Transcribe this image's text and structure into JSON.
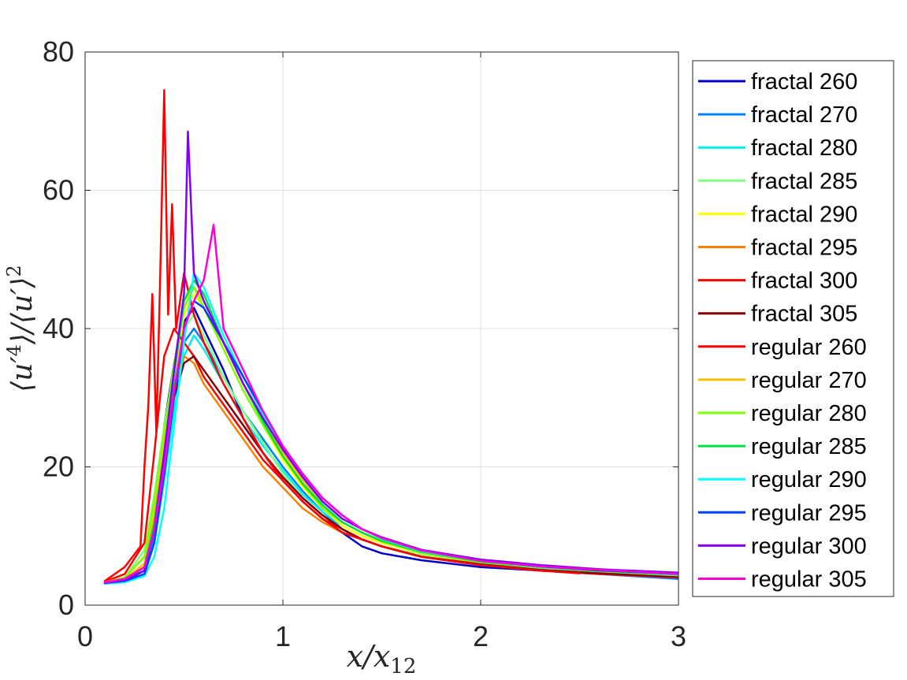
{
  "chart_data": {
    "type": "line",
    "xlabel": "x/x12",
    "ylabel": "⟨u′4⟩/⟨u′⟩2",
    "xlim": [
      0,
      3
    ],
    "ylim": [
      0,
      80
    ],
    "xticks": [
      "0",
      "1",
      "2",
      "3"
    ],
    "yticks": [
      "0",
      "20",
      "40",
      "60",
      "80"
    ],
    "grid": true,
    "legend_position": "outside-right",
    "series": [
      {
        "name": "fractal 260",
        "color": "#0000cc",
        "x": [
          0.1,
          0.2,
          0.3,
          0.35,
          0.4,
          0.45,
          0.5,
          0.55,
          0.6,
          0.7,
          0.8,
          0.9,
          1.0,
          1.1,
          1.2,
          1.3,
          1.4,
          1.5,
          1.7,
          2.0,
          2.3,
          2.6,
          3.0
        ],
        "y": [
          3.3,
          3.5,
          5.0,
          12.0,
          26.0,
          35.0,
          41.0,
          43.0,
          40.0,
          34.0,
          27.0,
          22.0,
          18.0,
          15.0,
          12.5,
          10.5,
          8.5,
          7.5,
          6.5,
          5.5,
          5.0,
          4.6,
          4.1
        ]
      },
      {
        "name": "fractal 270",
        "color": "#0080ff",
        "x": [
          0.1,
          0.2,
          0.3,
          0.35,
          0.4,
          0.45,
          0.5,
          0.55,
          0.6,
          0.7,
          0.8,
          0.9,
          1.0,
          1.1,
          1.2,
          1.3,
          1.4,
          1.5,
          1.7,
          2.0,
          2.3,
          2.6,
          3.0
        ],
        "y": [
          3.2,
          3.4,
          4.5,
          10.0,
          20.0,
          30.0,
          38.0,
          40.0,
          38.0,
          33.0,
          28.0,
          24.0,
          20.0,
          16.5,
          13.5,
          11.0,
          9.5,
          8.5,
          7.0,
          5.8,
          5.0,
          4.5,
          3.8
        ]
      },
      {
        "name": "fractal 280",
        "color": "#00f0f0",
        "x": [
          0.1,
          0.2,
          0.3,
          0.35,
          0.4,
          0.45,
          0.5,
          0.55,
          0.6,
          0.7,
          0.8,
          0.9,
          1.0,
          1.1,
          1.2,
          1.3,
          1.4,
          1.5,
          1.7,
          2.0,
          2.3,
          2.6,
          3.0
        ],
        "y": [
          3.1,
          3.3,
          4.5,
          9.0,
          18.0,
          28.0,
          36.0,
          39.0,
          37.0,
          32.0,
          27.0,
          23.0,
          19.5,
          16.0,
          13.5,
          11.5,
          10.0,
          9.0,
          7.5,
          6.0,
          5.2,
          4.8,
          4.2
        ]
      },
      {
        "name": "fractal 285",
        "color": "#80ff80",
        "x": [
          0.1,
          0.2,
          0.3,
          0.35,
          0.4,
          0.45,
          0.5,
          0.55,
          0.6,
          0.7,
          0.8,
          0.9,
          1.0,
          1.1,
          1.2,
          1.3,
          1.4,
          1.5,
          1.7,
          2.0,
          2.3,
          2.6,
          3.0
        ],
        "y": [
          3.3,
          4.0,
          8.0,
          16.0,
          26.0,
          34.0,
          40.0,
          42.0,
          39.0,
          33.0,
          28.0,
          23.5,
          19.0,
          15.5,
          13.0,
          11.0,
          9.5,
          8.5,
          7.2,
          6.0,
          5.2,
          4.6,
          4.0
        ]
      },
      {
        "name": "fractal 290",
        "color": "#ffff00",
        "x": [
          0.1,
          0.2,
          0.3,
          0.35,
          0.4,
          0.45,
          0.5,
          0.55,
          0.6,
          0.7,
          0.8,
          0.9,
          1.0,
          1.1,
          1.2,
          1.3,
          1.4,
          1.5,
          1.7,
          2.0,
          2.3,
          2.6,
          3.0
        ],
        "y": [
          3.2,
          3.8,
          6.0,
          14.0,
          24.0,
          33.0,
          42.0,
          45.0,
          43.0,
          37.0,
          31.0,
          26.0,
          21.0,
          17.0,
          14.0,
          11.5,
          10.0,
          9.0,
          7.5,
          6.2,
          5.4,
          4.9,
          4.3
        ]
      },
      {
        "name": "fractal 295",
        "color": "#ff8000",
        "x": [
          0.1,
          0.2,
          0.3,
          0.35,
          0.4,
          0.45,
          0.5,
          0.55,
          0.6,
          0.7,
          0.8,
          0.9,
          1.0,
          1.1,
          1.2,
          1.3,
          1.4,
          1.5,
          1.7,
          2.0,
          2.3,
          2.6,
          3.0
        ],
        "y": [
          3.3,
          4.0,
          7.0,
          15.0,
          25.0,
          32.0,
          36.0,
          35.0,
          32.0,
          28.0,
          24.0,
          20.0,
          17.0,
          14.0,
          12.0,
          10.5,
          9.5,
          8.5,
          7.0,
          6.0,
          5.2,
          4.7,
          4.2
        ]
      },
      {
        "name": "fractal 300",
        "color": "#ff0000",
        "x": [
          0.1,
          0.2,
          0.3,
          0.35,
          0.4,
          0.45,
          0.5,
          0.55,
          0.6,
          0.7,
          0.8,
          0.9,
          1.0,
          1.1,
          1.2,
          1.3,
          1.4,
          1.5,
          1.7,
          2.0,
          2.3,
          2.6,
          3.0
        ],
        "y": [
          3.4,
          4.5,
          9.0,
          22.0,
          36.0,
          40.0,
          38.0,
          36.0,
          33.0,
          29.0,
          25.0,
          21.0,
          18.0,
          15.0,
          12.5,
          11.0,
          9.5,
          8.5,
          7.0,
          5.8,
          5.0,
          4.5,
          4.0
        ]
      },
      {
        "name": "fractal 305",
        "color": "#800000",
        "x": [
          0.1,
          0.2,
          0.3,
          0.35,
          0.4,
          0.45,
          0.5,
          0.55,
          0.6,
          0.7,
          0.8,
          0.9,
          1.0,
          1.1,
          1.2,
          1.3,
          1.4,
          1.5,
          1.7,
          2.0,
          2.3,
          2.6,
          3.0
        ],
        "y": [
          3.2,
          3.6,
          5.5,
          12.0,
          22.0,
          30.0,
          35.0,
          36.0,
          34.0,
          30.0,
          26.0,
          22.0,
          18.5,
          15.5,
          13.0,
          11.0,
          9.5,
          8.5,
          7.0,
          5.9,
          5.1,
          4.6,
          4.1
        ]
      },
      {
        "name": "regular 260",
        "color": "#ff0000",
        "x": [
          0.1,
          0.2,
          0.28,
          0.3,
          0.32,
          0.34,
          0.36,
          0.38,
          0.4,
          0.42,
          0.44,
          0.46,
          0.5,
          0.55,
          0.6,
          0.7,
          0.8,
          0.9,
          1.0,
          1.1,
          1.2,
          1.3,
          1.4,
          1.5,
          1.7,
          2.0,
          2.3,
          2.5
        ],
        "y": [
          3.5,
          5.5,
          8.5,
          20.0,
          29.0,
          45.0,
          25.0,
          48.0,
          74.5,
          42.0,
          58.0,
          40.0,
          48.0,
          42.0,
          38.0,
          32.0,
          27.0,
          22.0,
          18.0,
          15.0,
          12.5,
          10.5,
          9.5,
          8.5,
          7.0,
          5.8,
          5.0,
          4.6
        ]
      },
      {
        "name": "regular 270",
        "color": "#ffbf00",
        "x": [
          0.1,
          0.2,
          0.3,
          0.35,
          0.4,
          0.45,
          0.5,
          0.55,
          0.6,
          0.7,
          0.8,
          0.9,
          1.0,
          1.1,
          1.2,
          1.3,
          1.4,
          1.5,
          1.7,
          2.0,
          2.3,
          2.6,
          3.0
        ],
        "y": [
          3.2,
          3.8,
          6.0,
          13.0,
          24.0,
          34.0,
          44.0,
          46.0,
          44.0,
          38.0,
          32.0,
          27.0,
          22.0,
          18.0,
          14.5,
          12.0,
          10.5,
          9.2,
          7.6,
          6.3,
          5.5,
          5.0,
          4.4
        ]
      },
      {
        "name": "regular 280",
        "color": "#80ff00",
        "x": [
          0.1,
          0.2,
          0.3,
          0.35,
          0.4,
          0.45,
          0.5,
          0.55,
          0.6,
          0.7,
          0.8,
          0.9,
          1.0,
          1.1,
          1.2,
          1.3,
          1.4,
          1.5,
          1.7,
          2.0,
          2.3,
          2.6,
          3.0
        ],
        "y": [
          3.3,
          4.0,
          7.0,
          15.0,
          25.0,
          35.0,
          43.0,
          46.0,
          43.0,
          37.0,
          31.0,
          26.0,
          21.5,
          17.5,
          14.0,
          12.0,
          10.5,
          9.2,
          7.6,
          6.2,
          5.4,
          4.9,
          4.3
        ]
      },
      {
        "name": "regular 285",
        "color": "#00e040",
        "x": [
          0.1,
          0.2,
          0.3,
          0.35,
          0.4,
          0.45,
          0.5,
          0.55,
          0.6,
          0.7,
          0.8,
          0.9,
          1.0,
          1.1,
          1.2,
          1.3,
          1.4,
          1.5,
          1.7,
          2.0,
          2.3,
          2.6,
          3.0
        ],
        "y": [
          3.2,
          3.7,
          5.5,
          12.0,
          22.0,
          33.0,
          44.0,
          47.0,
          45.0,
          38.0,
          32.0,
          26.5,
          21.5,
          17.5,
          14.5,
          12.0,
          10.5,
          9.3,
          7.7,
          6.3,
          5.5,
          5.0,
          4.4
        ]
      },
      {
        "name": "regular 290",
        "color": "#00ffff",
        "x": [
          0.1,
          0.2,
          0.3,
          0.35,
          0.4,
          0.45,
          0.5,
          0.55,
          0.6,
          0.7,
          0.8,
          0.9,
          1.0,
          1.1,
          1.2,
          1.3,
          1.4,
          1.5,
          1.7,
          2.0,
          2.3,
          2.6,
          3.0
        ],
        "y": [
          3.1,
          3.3,
          4.2,
          7.0,
          14.0,
          26.0,
          38.0,
          48.0,
          46.0,
          39.0,
          33.0,
          27.5,
          22.5,
          18.5,
          15.0,
          12.5,
          11.0,
          9.6,
          7.8,
          6.4,
          5.5,
          5.0,
          4.4
        ]
      },
      {
        "name": "regular 295",
        "color": "#0040ff",
        "x": [
          0.1,
          0.2,
          0.3,
          0.35,
          0.4,
          0.45,
          0.5,
          0.55,
          0.6,
          0.7,
          0.8,
          0.9,
          1.0,
          1.1,
          1.2,
          1.3,
          1.4,
          1.5,
          1.7,
          2.0,
          2.3,
          2.6,
          3.0
        ],
        "y": [
          3.2,
          3.5,
          4.5,
          9.0,
          19.0,
          30.0,
          40.0,
          44.0,
          43.0,
          38.0,
          33.0,
          28.0,
          23.0,
          19.0,
          15.5,
          13.0,
          11.0,
          9.8,
          8.0,
          6.5,
          5.6,
          5.0,
          4.5
        ]
      },
      {
        "name": "regular 300",
        "color": "#8000ff",
        "x": [
          0.1,
          0.2,
          0.3,
          0.35,
          0.4,
          0.45,
          0.5,
          0.52,
          0.55,
          0.6,
          0.7,
          0.8,
          0.9,
          1.0,
          1.1,
          1.2,
          1.3,
          1.4,
          1.5,
          1.7,
          2.0,
          2.3,
          2.6,
          3.0
        ],
        "y": [
          3.2,
          3.6,
          5.0,
          11.0,
          22.0,
          34.0,
          45.0,
          68.5,
          48.0,
          44.0,
          38.0,
          32.0,
          27.0,
          22.5,
          18.5,
          15.0,
          12.5,
          11.0,
          9.8,
          8.0,
          6.6,
          5.8,
          5.2,
          4.7
        ]
      },
      {
        "name": "regular 305",
        "color": "#ff00d0",
        "x": [
          0.1,
          0.2,
          0.3,
          0.35,
          0.4,
          0.45,
          0.5,
          0.55,
          0.6,
          0.65,
          0.7,
          0.8,
          0.9,
          1.0,
          1.1,
          1.2,
          1.3,
          1.4,
          1.5,
          1.7,
          2.0,
          2.3,
          2.6,
          3.0
        ],
        "y": [
          3.3,
          3.8,
          5.5,
          11.0,
          20.0,
          31.0,
          40.0,
          44.0,
          47.0,
          55.0,
          40.0,
          34.0,
          28.0,
          23.0,
          19.0,
          15.5,
          13.0,
          11.0,
          9.7,
          7.9,
          6.4,
          5.6,
          5.1,
          4.5
        ]
      }
    ]
  }
}
